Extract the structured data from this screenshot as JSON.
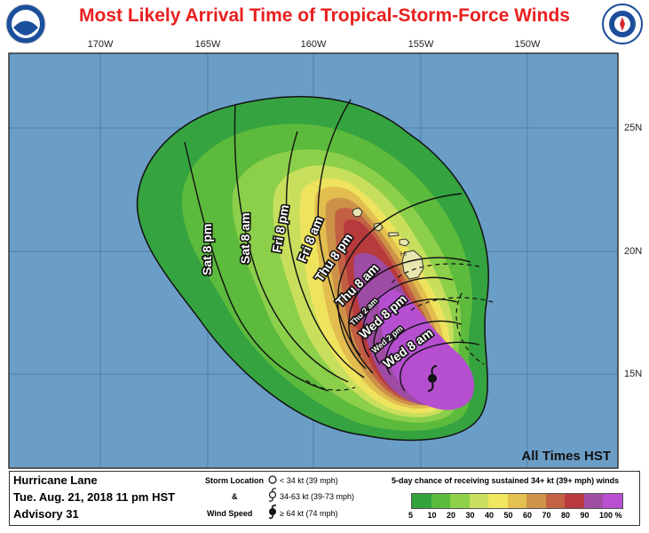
{
  "title": "Most Likely Arrival Time of Tropical-Storm-Force Winds",
  "footer_note": "All Times HST",
  "storm": {
    "name": "Hurricane Lane",
    "date": "Tue. Aug. 21, 2018   11 pm HST",
    "advisory": "Advisory 31"
  },
  "wind_legend": {
    "label_1": "Storm Location",
    "label_2": "&",
    "label_3": "Wind Speed",
    "items": [
      "< 34 kt (39 mph)",
      "34-63 kt (39-73 mph)",
      "≥ 64 kt (74 mph)"
    ]
  },
  "probability_legend": {
    "title": "5-day chance of receiving sustained 34+ kt (39+ mph) winds",
    "ticks": [
      "5",
      "10",
      "20",
      "30",
      "40",
      "50",
      "60",
      "70",
      "80",
      "90",
      "100 %"
    ],
    "colors": [
      "#32a33b",
      "#5dbb3c",
      "#8fd14a",
      "#c9e060",
      "#f0e660",
      "#e4c050",
      "#cf9448",
      "#c36144",
      "#b83a3e",
      "#a04da4",
      "#b84fd0"
    ]
  },
  "map": {
    "longitudes": [
      "170W",
      "165W",
      "160W",
      "155W",
      "150W"
    ],
    "latitudes": [
      "25N",
      "20N",
      "15N"
    ],
    "island_label": "HI",
    "colors": {
      "ocean": "#6b9ec7",
      "land": "#e9e6ae",
      "border": "#333333"
    }
  },
  "arrival_labels": [
    "Sat  8  pm",
    "Sat  8  am",
    "Fri  8  pm",
    "Fri  8  am",
    "Thu  8  pm",
    "Thu  8  am",
    "Thu  2  am",
    "Wed  8  pm",
    "Wed  2  pm",
    "Wed  8  am"
  ]
}
